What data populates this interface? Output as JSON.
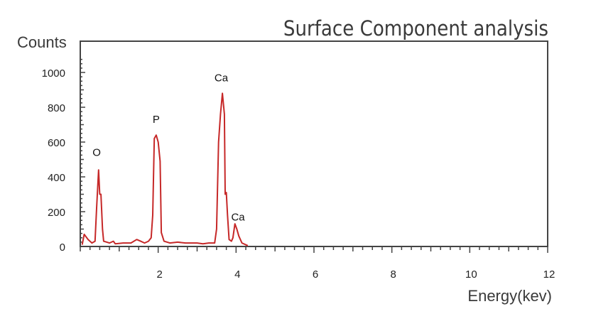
{
  "chart_data": {
    "type": "line",
    "title": "Surface Component analysis",
    "ylabel": "Counts",
    "xlabel": "Energy(kev)",
    "xlim": [
      0,
      12
    ],
    "ylim": [
      0,
      1000
    ],
    "y_ticks": [
      0,
      200,
      400,
      600,
      800,
      1000
    ],
    "x_ticks": [
      2,
      4,
      6,
      8,
      10,
      12
    ],
    "y_tick_labels": [
      "0",
      "200",
      "400",
      "600",
      "800",
      "1000"
    ],
    "x_tick_labels": [
      "2",
      "4",
      "6",
      "8",
      "10",
      "12"
    ],
    "grid": false,
    "series": [
      {
        "color": "#c62828",
        "points": [
          [
            0.05,
            10
          ],
          [
            0.1,
            70
          ],
          [
            0.2,
            40
          ],
          [
            0.3,
            20
          ],
          [
            0.38,
            30
          ],
          [
            0.42,
            220
          ],
          [
            0.47,
            440
          ],
          [
            0.5,
            300
          ],
          [
            0.53,
            300
          ],
          [
            0.57,
            100
          ],
          [
            0.6,
            30
          ],
          [
            0.75,
            20
          ],
          [
            0.85,
            30
          ],
          [
            0.9,
            15
          ],
          [
            1.1,
            20
          ],
          [
            1.3,
            20
          ],
          [
            1.45,
            40
          ],
          [
            1.55,
            30
          ],
          [
            1.65,
            20
          ],
          [
            1.75,
            30
          ],
          [
            1.82,
            50
          ],
          [
            1.86,
            180
          ],
          [
            1.9,
            620
          ],
          [
            1.95,
            640
          ],
          [
            2.0,
            600
          ],
          [
            2.05,
            490
          ],
          [
            2.08,
            80
          ],
          [
            2.15,
            30
          ],
          [
            2.3,
            20
          ],
          [
            2.5,
            25
          ],
          [
            2.7,
            20
          ],
          [
            3.0,
            20
          ],
          [
            3.15,
            15
          ],
          [
            3.3,
            20
          ],
          [
            3.45,
            20
          ],
          [
            3.5,
            100
          ],
          [
            3.55,
            600
          ],
          [
            3.6,
            760
          ],
          [
            3.65,
            880
          ],
          [
            3.7,
            760
          ],
          [
            3.72,
            300
          ],
          [
            3.75,
            310
          ],
          [
            3.78,
            180
          ],
          [
            3.82,
            40
          ],
          [
            3.88,
            30
          ],
          [
            3.92,
            50
          ],
          [
            3.97,
            130
          ],
          [
            4.02,
            100
          ],
          [
            4.07,
            60
          ],
          [
            4.15,
            20
          ],
          [
            4.3,
            5
          ]
        ]
      }
    ],
    "annotations": [
      {
        "text": "O",
        "x": 0.42,
        "y": 520
      },
      {
        "text": "P",
        "x": 1.95,
        "y": 710
      },
      {
        "text": "Ca",
        "x": 3.62,
        "y": 950
      },
      {
        "text": "Ca",
        "x": 4.05,
        "y": 150
      }
    ]
  }
}
